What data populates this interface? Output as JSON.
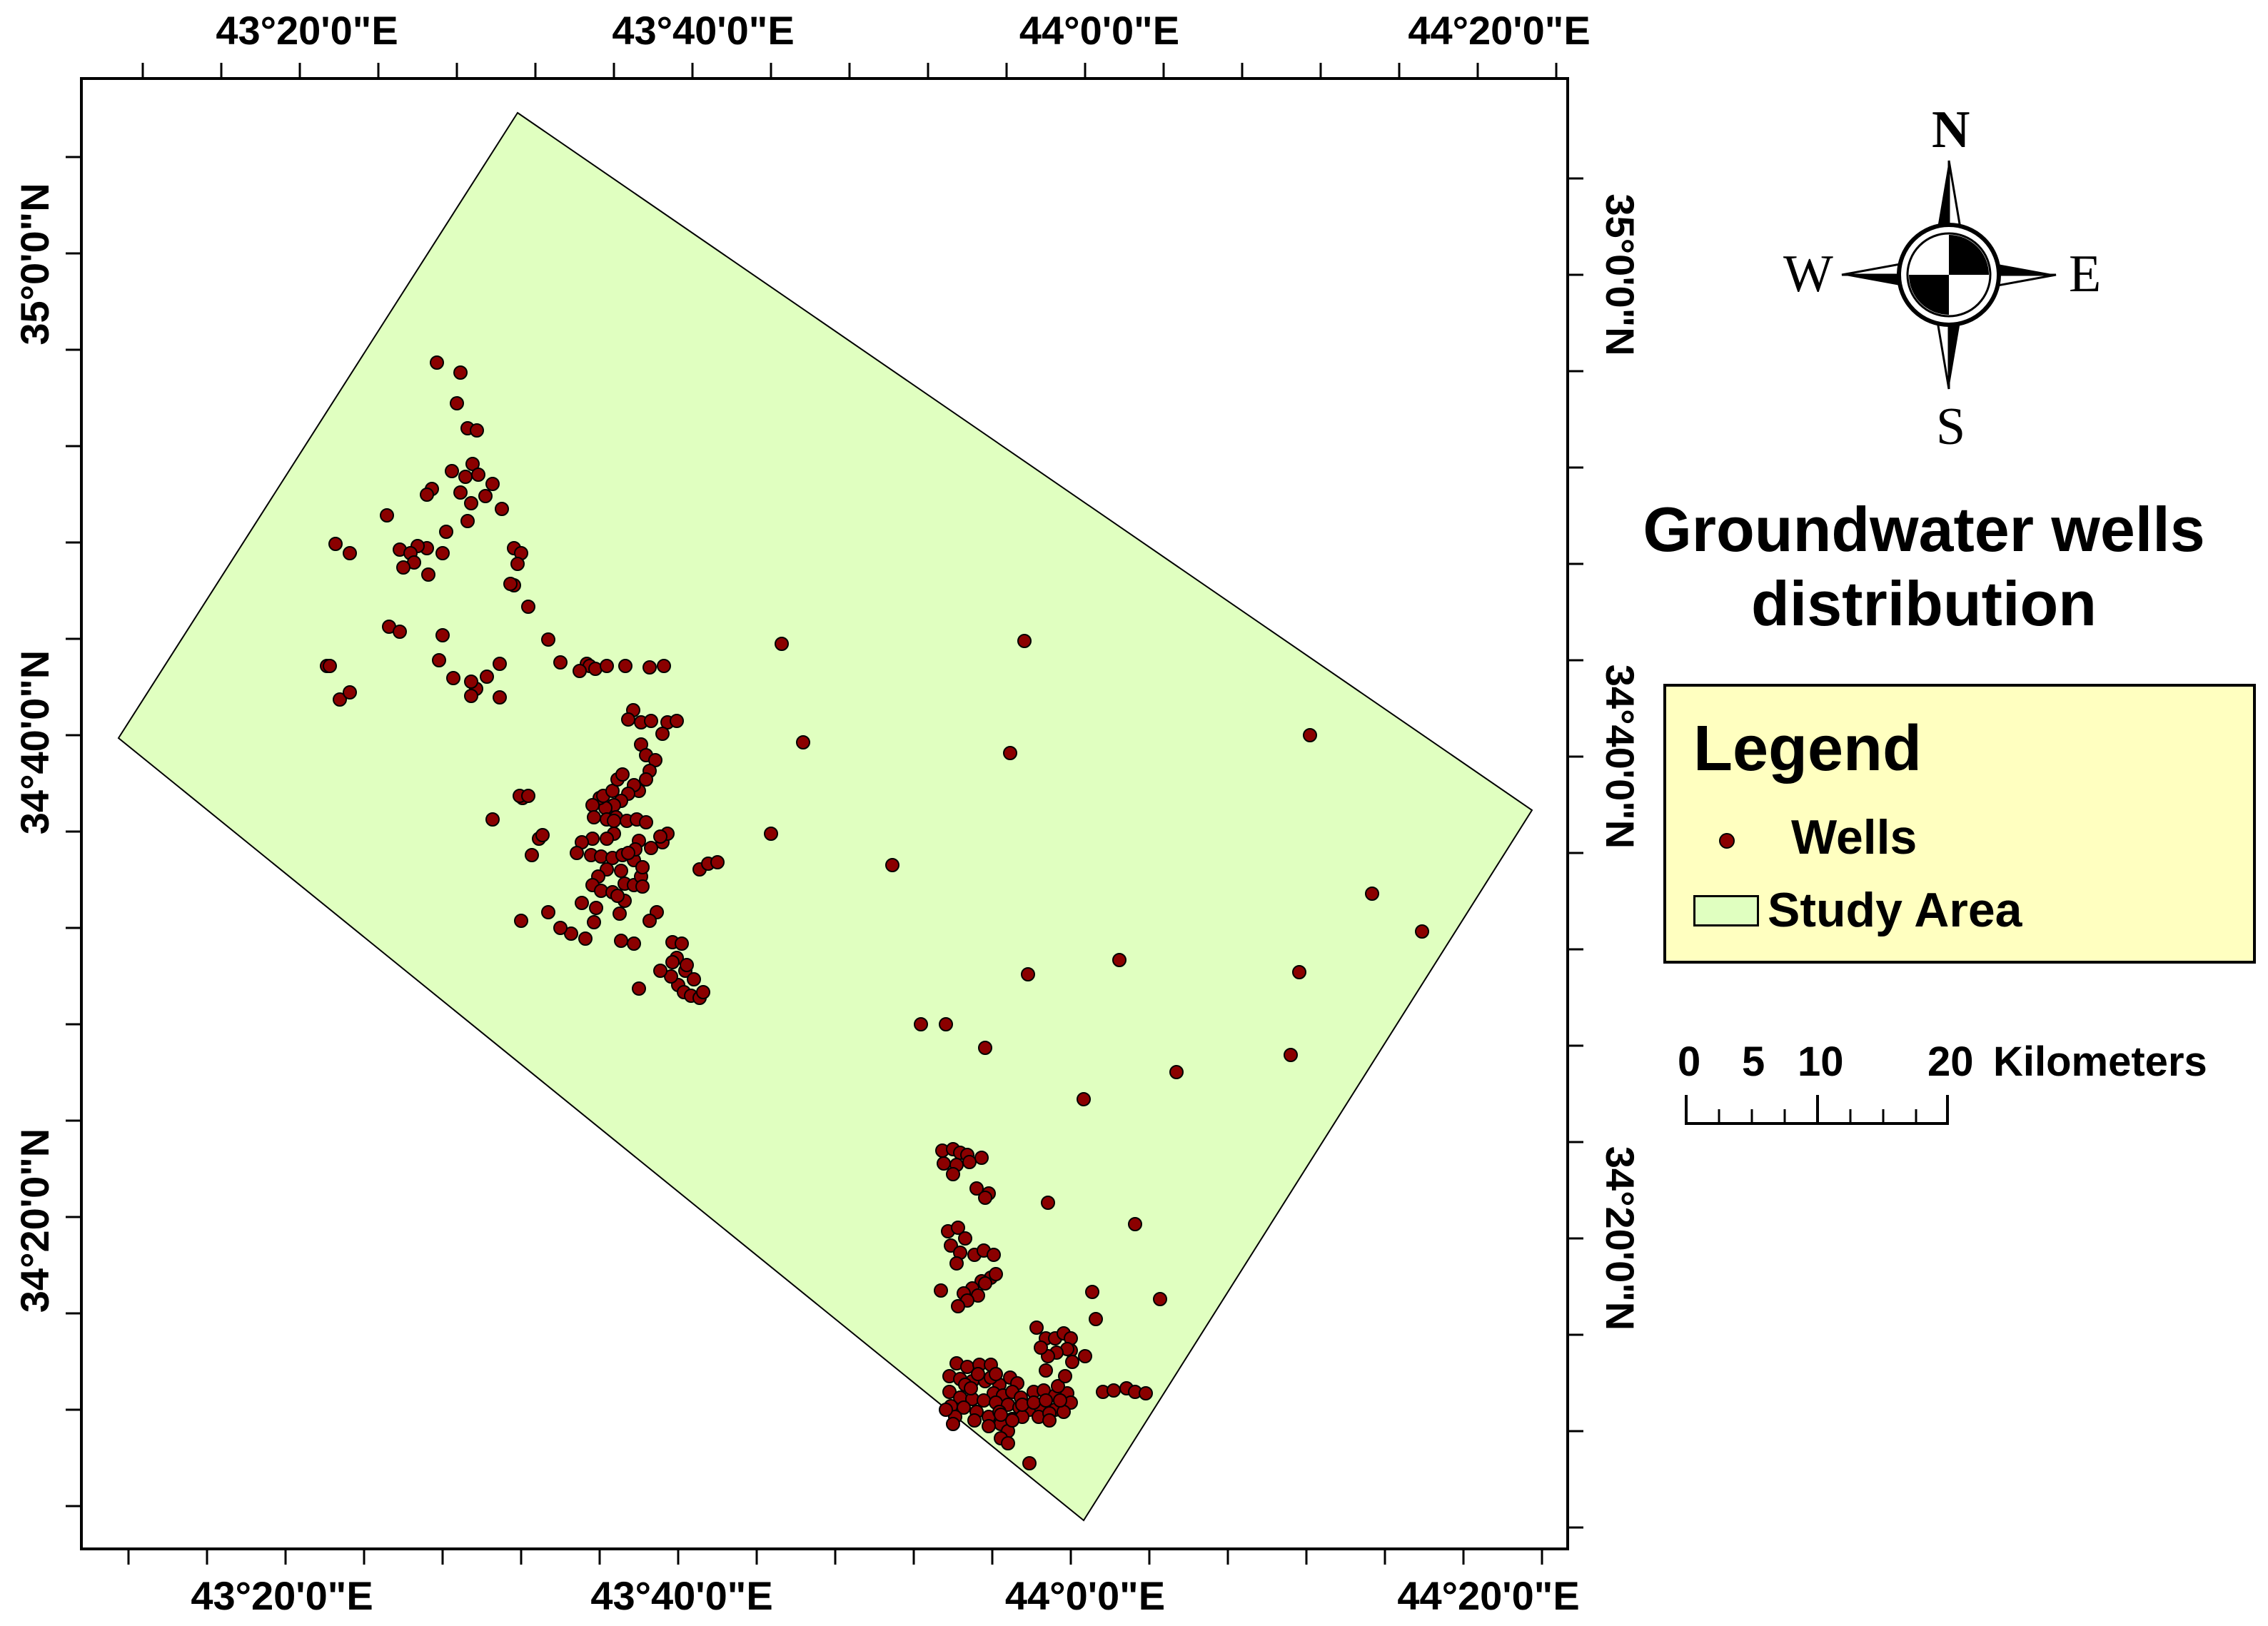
{
  "axes": {
    "lon_labels_top": [
      "43°20'0\"E",
      "43°40'0\"E",
      "44°0'0\"E",
      "44°20'0\"E"
    ],
    "lon_labels_bottom": [
      "43°20'0\"E",
      "43°40'0\"E",
      "44°0'0\"E",
      "44°20'0\"E"
    ],
    "lat_labels_left": [
      "35°0'0\"N",
      "34°40'0\"N",
      "34°20'0\"N"
    ],
    "lat_labels_right": [
      "35°0'0\"N",
      "34°40'0\"N",
      "34°20'0\"N"
    ]
  },
  "title": {
    "line1": "Groundwater wells",
    "line2": "distribution"
  },
  "legend": {
    "title": "Legend",
    "wells_label": "Wells",
    "study_area_label": "Study Area"
  },
  "scale_bar": {
    "labels": [
      "0",
      "5",
      "10",
      "20"
    ],
    "units": "Kilometers"
  },
  "north_arrow": {
    "n": "N",
    "s": "S",
    "e": "E",
    "w": "W"
  },
  "colors": {
    "study_area_fill": "#e0ffc0",
    "well_fill": "#8b0000",
    "legend_bg": "#ffffc0"
  },
  "wells": {
    "count": 356
  }
}
